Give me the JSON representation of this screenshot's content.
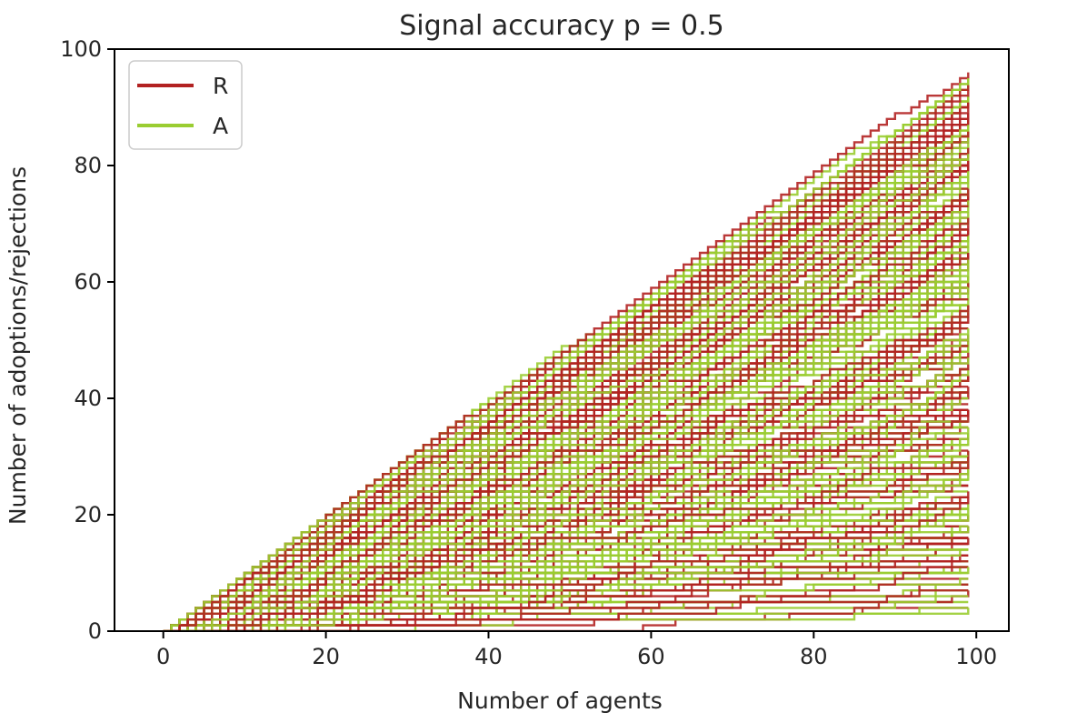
{
  "chart_data": {
    "type": "line",
    "title": "Signal accuracy p =  0.5",
    "xlabel": "Number of agents",
    "ylabel": "Number of adoptions/rejections",
    "xlim": [
      -6,
      104
    ],
    "ylim": [
      0,
      100
    ],
    "xticks": [
      0,
      20,
      40,
      60,
      80,
      100
    ],
    "yticks": [
      0,
      20,
      40,
      60,
      80,
      100
    ],
    "x_range_of_series": [
      0,
      99
    ],
    "grid": false,
    "legend": {
      "placement": "top-left",
      "entries": [
        {
          "label": "R",
          "color": "#b22222"
        },
        {
          "label": "A",
          "color": "#9acd32"
        }
      ]
    },
    "series_groups": [
      {
        "name": "R",
        "color": "#b22222",
        "description": "many simulated cumulative rejection paths, from 0 at agent 0 to final values spread roughly 5-96 at agent 99"
      },
      {
        "name": "A",
        "color": "#9acd32",
        "description": "many simulated cumulative adoption paths, from 0 at agent 0 to final values spread roughly 4-92 at agent 99"
      }
    ]
  }
}
